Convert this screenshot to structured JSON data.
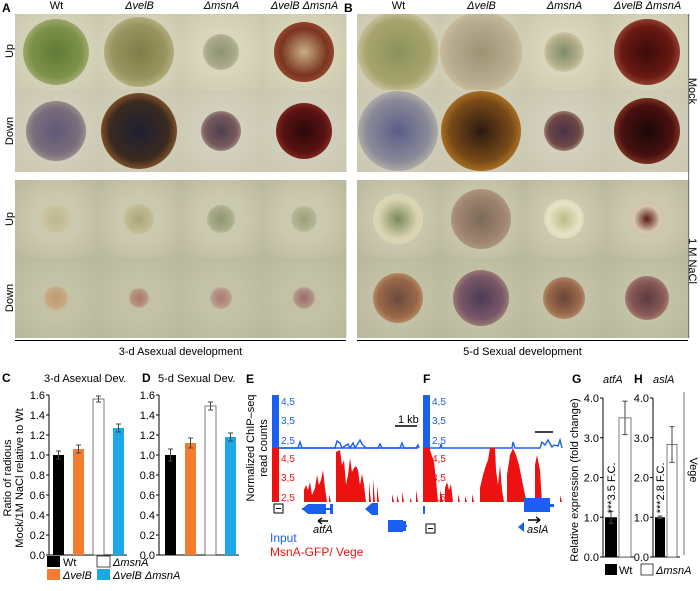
{
  "panelA": {
    "label": "A",
    "columns": [
      "Wt",
      "ΔvelB",
      "ΔmsnA",
      "ΔvelB ΔmsnA"
    ],
    "rows": [
      "Up",
      "Down",
      "Up",
      "Down"
    ],
    "footer": "3-d Asexual development"
  },
  "panelB": {
    "label": "B",
    "columns": [
      "Wt",
      "ΔvelB",
      "ΔmsnA",
      "ΔvelB ΔmsnA"
    ],
    "footer": "5-d Sexual development"
  },
  "conditions": [
    "Mock",
    "1 M NaCl"
  ],
  "legend_CD": [
    "Wt",
    "ΔmsnA",
    "ΔvelB",
    "ΔvelB ΔmsnA"
  ],
  "legend_GH": [
    "Wt",
    "ΔmsnA"
  ],
  "colors": {
    "wt": "#000000",
    "velB": "#f47c30",
    "msnA": "#ffffff",
    "double": "#1ba9e6",
    "input": "#1a5ff0",
    "chip": "#ee1111"
  },
  "chip": {
    "E_label": "E",
    "F_label": "F",
    "ylabel": "Normalized ChIP–seq read counts",
    "ticks": [
      "4,5",
      "3,5",
      "2,5"
    ],
    "scale": "1 kb",
    "gene_E": "atfA",
    "gene_F": "aslA",
    "legend_input": "Input",
    "legend_chip": "MsnA-GFP/ Vege"
  },
  "side_label_GH": "Vege",
  "chart_data": [
    {
      "panel": "C",
      "type": "bar",
      "title": "3-d Asexual Dev.",
      "ylabel": "Ratio of radious Mock/1M NaCl relative to Wt",
      "categories": [
        "Wt",
        "ΔvelB",
        "ΔmsnA",
        "ΔvelB ΔmsnA"
      ],
      "values": [
        1.0,
        1.06,
        1.56,
        1.27
      ],
      "errors": [
        0.04,
        0.04,
        0.03,
        0.04
      ],
      "ylim": [
        0,
        1.6
      ],
      "yticks": [
        "0.0",
        "0.2",
        "0.4",
        "0.6",
        "0.8",
        "1.0",
        "1.2",
        "1.4",
        "1.6"
      ]
    },
    {
      "panel": "D",
      "type": "bar",
      "title": "5-d Sexual Dev.",
      "categories": [
        "Wt",
        "ΔvelB",
        "ΔmsnA",
        "ΔvelB ΔmsnA"
      ],
      "values": [
        1.0,
        1.12,
        1.49,
        1.18
      ],
      "errors": [
        0.06,
        0.05,
        0.04,
        0.04
      ],
      "ylim": [
        0,
        1.6
      ],
      "yticks": [
        "0.0",
        "0.2",
        "0.4",
        "0.6",
        "0.8",
        "1.0",
        "1.2",
        "1.4",
        "1.6"
      ]
    },
    {
      "panel": "G",
      "type": "bar",
      "title": "atfA",
      "ylabel": "Relative expression (fold change)",
      "categories": [
        "Wt",
        "ΔmsnA"
      ],
      "values": [
        1.0,
        3.5
      ],
      "errors": [
        0.15,
        0.42
      ],
      "ylim": [
        0,
        4
      ],
      "yticks": [
        "0.0",
        "1.0",
        "2.0",
        "3.0",
        "4.0"
      ],
      "annotation": "***3.5 F.C."
    },
    {
      "panel": "H",
      "type": "bar",
      "title": "aslA",
      "categories": [
        "Wt",
        "ΔmsnA"
      ],
      "values": [
        1.0,
        2.83
      ],
      "errors": [
        0.03,
        0.45
      ],
      "ylim": [
        0,
        4
      ],
      "yticks": [
        "0.0",
        "1.0",
        "2.0",
        "3.0",
        "4.0"
      ],
      "annotation": "***2.8 F.C."
    }
  ]
}
